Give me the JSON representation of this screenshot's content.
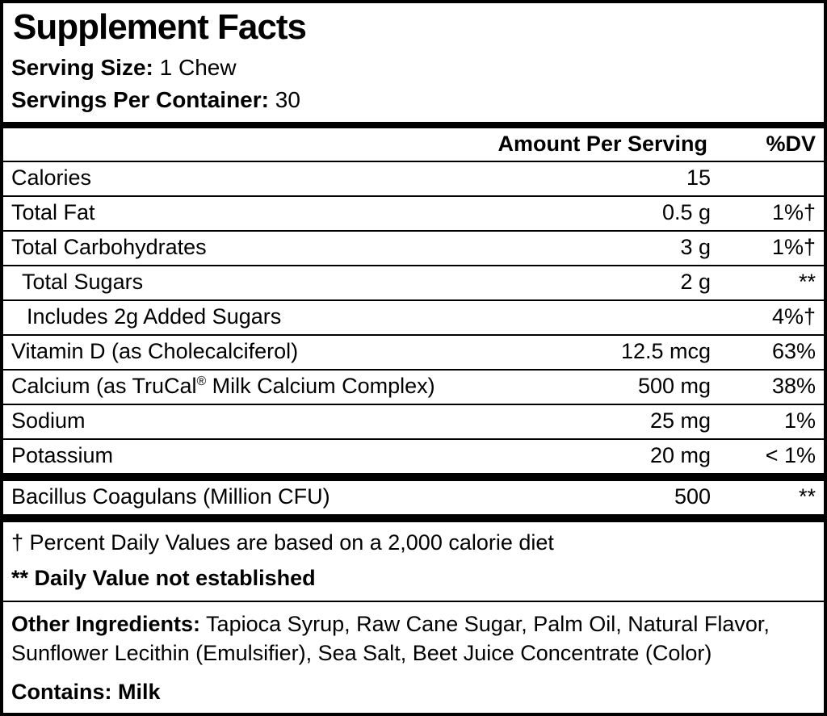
{
  "label": {
    "title": "Supplement Facts",
    "serving_size": {
      "label": "Serving Size:",
      "value": "1 Chew"
    },
    "servings_per_container": {
      "label": "Servings Per Container:",
      "value": "30"
    },
    "table": {
      "headers": {
        "amount": "Amount Per Serving",
        "dv": "%DV"
      },
      "main_rows": [
        {
          "name": "Calories",
          "amount": "15",
          "dv": "",
          "indent": 0
        },
        {
          "name": "Total Fat",
          "amount": "0.5 g",
          "dv": "1%†",
          "indent": 0
        },
        {
          "name": "Total Carbohydrates",
          "amount": "3 g",
          "dv": "1%†",
          "indent": 0
        },
        {
          "name": "Total Sugars",
          "amount": "2 g",
          "dv": "**",
          "indent": 1
        },
        {
          "name": "Includes 2g Added Sugars",
          "amount": "",
          "dv": "4%†",
          "indent": 2
        },
        {
          "name": "Vitamin D (as Cholecalciferol)",
          "amount": "12.5 mcg",
          "dv": "63%",
          "indent": 0
        },
        {
          "name": "Calcium (as TruCal® Milk Calcium Complex)",
          "amount": "500 mg",
          "dv": "38%",
          "indent": 0
        },
        {
          "name": "Sodium",
          "amount": "25 mg",
          "dv": "1%",
          "indent": 0
        },
        {
          "name": "Potassium",
          "amount": "20 mg",
          "dv": "< 1%",
          "indent": 0
        }
      ],
      "extra_rows": [
        {
          "name": "Bacillus Coagulans (Million CFU)",
          "amount": "500",
          "dv": "**",
          "indent": 0
        }
      ]
    },
    "footnotes": [
      {
        "text": "† Percent Daily Values are based on a 2,000 calorie diet"
      },
      {
        "text": "** Daily Value not established"
      }
    ],
    "other_ingredients": {
      "label": "Other Ingredients:",
      "value": "Tapioca Syrup, Raw Cane Sugar, Palm Oil, Natural Flavor, Sunflower Lecithin (Emulsifier), Sea Salt, Beet Juice Concentrate (Color)"
    },
    "contains": {
      "label": "Contains:",
      "value": "Milk"
    }
  }
}
